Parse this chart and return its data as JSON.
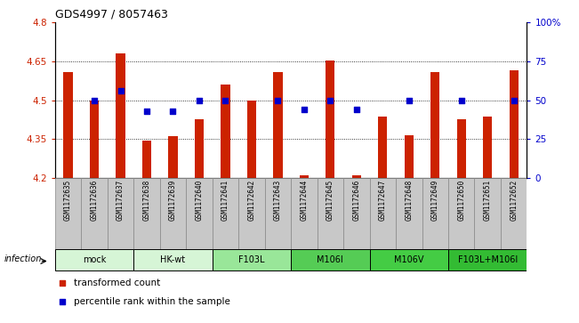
{
  "title": "GDS4997 / 8057463",
  "samples": [
    "GSM1172635",
    "GSM1172636",
    "GSM1172637",
    "GSM1172638",
    "GSM1172639",
    "GSM1172640",
    "GSM1172641",
    "GSM1172642",
    "GSM1172643",
    "GSM1172644",
    "GSM1172645",
    "GSM1172646",
    "GSM1172647",
    "GSM1172648",
    "GSM1172649",
    "GSM1172650",
    "GSM1172651",
    "GSM1172652"
  ],
  "red_values": [
    4.61,
    4.5,
    4.68,
    4.345,
    4.36,
    4.425,
    4.56,
    4.5,
    4.61,
    4.21,
    4.655,
    4.21,
    4.435,
    4.365,
    4.61,
    4.425,
    4.435,
    4.615
  ],
  "blue_values": [
    null,
    50,
    56,
    43,
    43,
    50,
    50,
    null,
    50,
    44,
    50,
    44,
    null,
    50,
    null,
    50,
    null,
    50
  ],
  "ymin": 4.2,
  "ymax": 4.8,
  "yticks": [
    4.2,
    4.35,
    4.5,
    4.65,
    4.8
  ],
  "ytick_labels": [
    "4.2",
    "4.35",
    "4.5",
    "4.65",
    "4.8"
  ],
  "hlines": [
    4.35,
    4.5,
    4.65
  ],
  "groups": [
    {
      "label": "mock",
      "start": 0,
      "end": 3,
      "color": "#d6f5d6"
    },
    {
      "label": "HK-wt",
      "start": 3,
      "end": 6,
      "color": "#d6f5d6"
    },
    {
      "label": "F103L",
      "start": 6,
      "end": 9,
      "color": "#99e699"
    },
    {
      "label": "M106I",
      "start": 9,
      "end": 12,
      "color": "#55cc55"
    },
    {
      "label": "M106V",
      "start": 12,
      "end": 15,
      "color": "#44cc44"
    },
    {
      "label": "F103L+M106I",
      "start": 15,
      "end": 18,
      "color": "#33bb33"
    }
  ],
  "bar_color": "#cc2200",
  "dot_color": "#0000cc",
  "bar_width": 0.35,
  "dot_size": 22,
  "legend_red": "transformed count",
  "legend_blue": "percentile rank within the sample",
  "sample_box_color": "#c8c8c8",
  "sample_box_edge": "#888888"
}
